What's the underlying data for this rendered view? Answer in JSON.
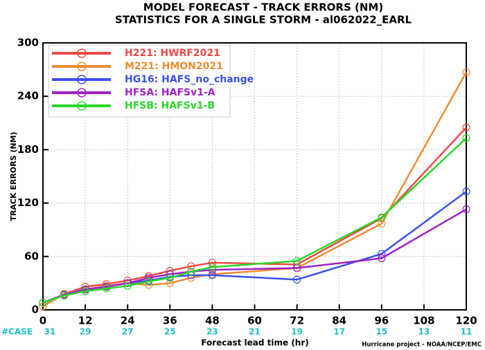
{
  "chart_data": {
    "type": "line",
    "title": "MODEL FORECAST - TRACK ERRORS (NM)",
    "subtitle": "STATISTICS FOR A SINGLE STORM - al062022_EARL",
    "x_label": "Forecast lead time (hr)",
    "y_label": "TRACK ERRORS (NM)",
    "footer": "Hurricane project - NOAA/NCEP/EMC",
    "x": [
      0,
      6,
      12,
      18,
      24,
      30,
      36,
      42,
      48,
      72,
      96,
      120
    ],
    "xlim": [
      0,
      120
    ],
    "xticks": [
      0,
      12,
      24,
      36,
      48,
      60,
      72,
      84,
      96,
      108,
      120
    ],
    "ylim": [
      0,
      300
    ],
    "yticks": [
      0,
      60,
      120,
      180,
      240,
      300
    ],
    "grid": true,
    "legend": "upper left",
    "cases_label": "#CASE",
    "cases": [
      31,
      29,
      27,
      25,
      23,
      21,
      19,
      17,
      15,
      13,
      11
    ],
    "series": [
      {
        "name": "H221: HWRF2021",
        "color": "#f04848",
        "values": [
          4,
          18,
          26,
          29,
          33,
          38,
          44,
          49,
          53,
          51,
          103,
          205
        ]
      },
      {
        "name": "M221: HMON2021",
        "color": "#f08c30",
        "values": [
          4,
          18,
          23,
          27,
          30,
          28,
          30,
          36,
          40,
          47,
          97,
          267
        ]
      },
      {
        "name": "HG16: HAFS_no_change",
        "color": "#3c50f0",
        "values": [
          8,
          17,
          23,
          26,
          30,
          33,
          37,
          39,
          39,
          34,
          63,
          133
        ]
      },
      {
        "name": "HFSA: HAFSv1-A",
        "color": "#a020c8",
        "values": [
          8,
          17,
          23,
          26,
          30,
          36,
          40,
          43,
          45,
          47,
          58,
          113
        ]
      },
      {
        "name": "HFSB: HAFSv1-B",
        "color": "#28d828",
        "values": [
          8,
          16,
          21,
          24,
          27,
          32,
          36,
          43,
          48,
          55,
          104,
          193
        ]
      }
    ]
  }
}
